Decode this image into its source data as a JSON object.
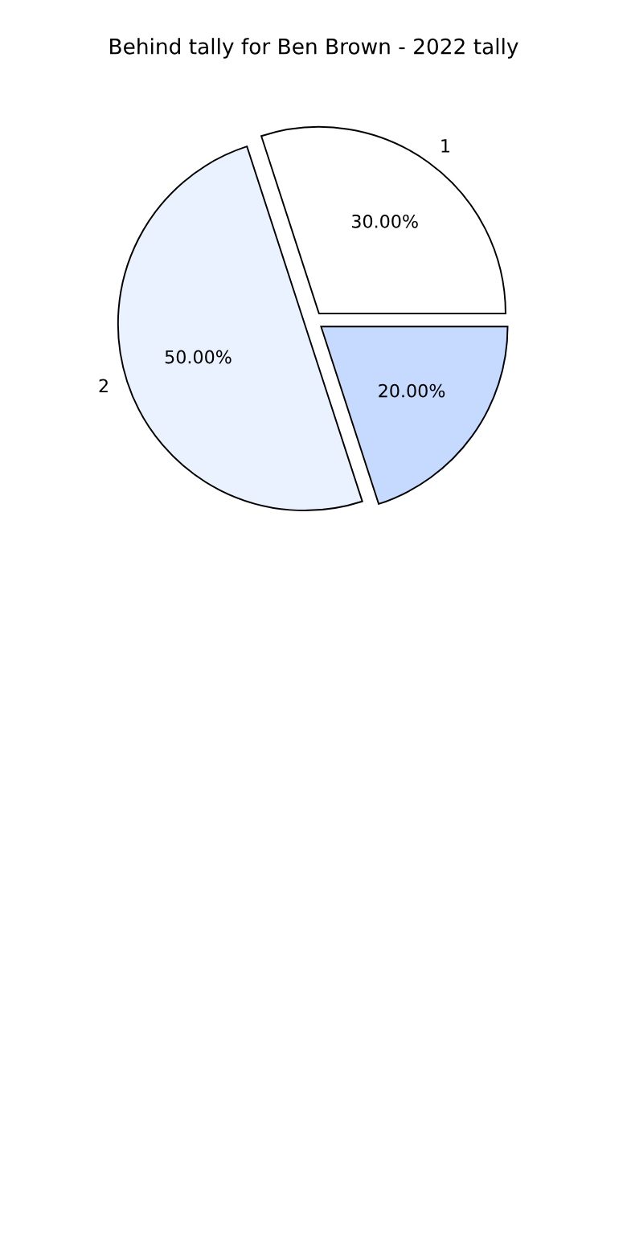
{
  "chart_data": {
    "type": "pie",
    "title": "Behind tally for Ben Brown - 2022 tally",
    "categories": [
      "1",
      "2",
      null
    ],
    "values": [
      30,
      50,
      20
    ],
    "value_labels": [
      "30.00%",
      "50.00%",
      "20.00%"
    ],
    "colors": [
      "#ffffff",
      "#eaf1ff",
      "#c6d9ff"
    ]
  }
}
